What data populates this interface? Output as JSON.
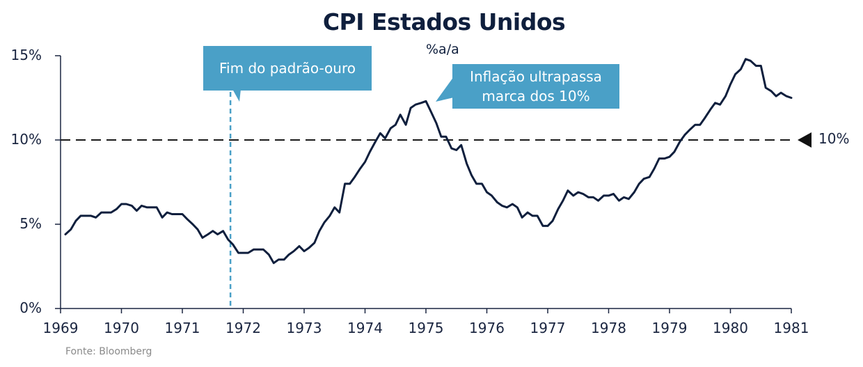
{
  "title": "CPI Estados Unidos",
  "subtitle": "%a/a",
  "source": "Fonte: Bloomberg",
  "colors": {
    "line": "#0f1f3d",
    "accent": "#4aa0c7",
    "reference": "#1a1a1a"
  },
  "callouts": {
    "gold_standard": "Fim do padrão-ouro",
    "inflation": [
      "Inflação ultrapassa",
      "marca dos 10%"
    ]
  },
  "reference_label": "10%",
  "chart_data": {
    "type": "line",
    "title": "CPI Estados Unidos",
    "subtitle": "%a/a",
    "xlim": [
      1969,
      1981
    ],
    "ylim": [
      0,
      15
    ],
    "grid": false,
    "yticks": [
      0,
      5,
      10,
      15
    ],
    "ytick_labels": [
      "0%",
      "5%",
      "10%",
      "15%"
    ],
    "xticks": [
      1969,
      1970,
      1971,
      1972,
      1973,
      1974,
      1975,
      1976,
      1977,
      1978,
      1979,
      1980,
      1981
    ],
    "xtick_labels": [
      "1969",
      "1970",
      "1971",
      "1972",
      "1973",
      "1974",
      "1975",
      "1976",
      "1977",
      "1978",
      "1979",
      "1980",
      "1981"
    ],
    "reference_line": {
      "y": 10,
      "label": "10%"
    },
    "event_marker": {
      "x": 1971.79,
      "label": "Fim do padrão-ouro"
    },
    "annotation": {
      "x": 1975.0,
      "y": 12.3,
      "label": "Inflação ultrapassa marca dos 10%"
    },
    "series": [
      {
        "x": [
          1969.08,
          1969.17,
          1969.25,
          1969.33,
          1969.42,
          1969.5,
          1969.58,
          1969.67,
          1969.75,
          1969.83,
          1969.92,
          1970.0,
          1970.08,
          1970.17,
          1970.25,
          1970.33,
          1970.42,
          1970.5,
          1970.58,
          1970.67,
          1970.75,
          1970.83,
          1970.92,
          1971.0,
          1971.08,
          1971.17,
          1971.25,
          1971.33,
          1971.42,
          1971.5,
          1971.58,
          1971.67,
          1971.75,
          1971.83,
          1971.92,
          1972.0,
          1972.08,
          1972.17,
          1972.25,
          1972.33,
          1972.42,
          1972.5,
          1972.58,
          1972.67,
          1972.75,
          1972.83,
          1972.92,
          1973.0,
          1973.08,
          1973.17,
          1973.25,
          1973.33,
          1973.42,
          1973.5,
          1973.58,
          1973.67,
          1973.75,
          1973.83,
          1973.92,
          1974.0,
          1974.08,
          1974.17,
          1974.25,
          1974.33,
          1974.42,
          1974.5,
          1974.58,
          1974.67,
          1974.75,
          1974.83,
          1974.92,
          1975.0,
          1975.08,
          1975.17,
          1975.25,
          1975.33,
          1975.42,
          1975.5,
          1975.58,
          1975.67,
          1975.75,
          1975.83,
          1975.92,
          1976.0,
          1976.08,
          1976.17,
          1976.25,
          1976.33,
          1976.42,
          1976.5,
          1976.58,
          1976.67,
          1976.75,
          1976.83,
          1976.92,
          1977.0,
          1977.08,
          1977.17,
          1977.25,
          1977.33,
          1977.42,
          1977.5,
          1977.58,
          1977.67,
          1977.75,
          1977.83,
          1977.92,
          1978.0,
          1978.08,
          1978.17,
          1978.25,
          1978.33,
          1978.42,
          1978.5,
          1978.58,
          1978.67,
          1978.75,
          1978.83,
          1978.92,
          1979.0,
          1979.08,
          1979.17,
          1979.25,
          1979.33,
          1979.42,
          1979.5,
          1979.58,
          1979.67,
          1979.75,
          1979.83,
          1979.92,
          1980.0,
          1980.08,
          1980.17,
          1980.25,
          1980.33,
          1980.42,
          1980.5,
          1980.58,
          1980.67,
          1980.75,
          1980.83,
          1980.92,
          1981.0
        ],
        "values": [
          4.4,
          4.7,
          5.2,
          5.5,
          5.5,
          5.5,
          5.4,
          5.7,
          5.7,
          5.7,
          5.9,
          6.2,
          6.2,
          6.1,
          5.8,
          6.1,
          6.0,
          6.0,
          6.0,
          5.4,
          5.7,
          5.6,
          5.6,
          5.6,
          5.3,
          5.0,
          4.7,
          4.2,
          4.4,
          4.6,
          4.4,
          4.6,
          4.1,
          3.8,
          3.3,
          3.3,
          3.3,
          3.5,
          3.5,
          3.5,
          3.2,
          2.7,
          2.9,
          2.9,
          3.2,
          3.4,
          3.7,
          3.4,
          3.6,
          3.9,
          4.6,
          5.1,
          5.5,
          6.0,
          5.7,
          7.4,
          7.4,
          7.8,
          8.3,
          8.7,
          9.3,
          9.9,
          10.4,
          10.1,
          10.7,
          10.9,
          11.5,
          10.9,
          11.9,
          12.1,
          12.2,
          12.3,
          11.7,
          11.0,
          10.2,
          10.2,
          9.5,
          9.4,
          9.7,
          8.6,
          7.9,
          7.4,
          7.4,
          6.9,
          6.7,
          6.3,
          6.1,
          6.0,
          6.2,
          6.0,
          5.4,
          5.7,
          5.5,
          5.5,
          4.9,
          4.9,
          5.2,
          5.9,
          6.4,
          7.0,
          6.7,
          6.9,
          6.8,
          6.6,
          6.6,
          6.4,
          6.7,
          6.7,
          6.8,
          6.4,
          6.6,
          6.5,
          6.9,
          7.4,
          7.7,
          7.8,
          8.3,
          8.9,
          8.9,
          9.0,
          9.3,
          9.9,
          10.3,
          10.6,
          10.9,
          10.9,
          11.3,
          11.8,
          12.2,
          12.1,
          12.6,
          13.3,
          13.9,
          14.2,
          14.8,
          14.7,
          14.4,
          14.4,
          13.1,
          12.9,
          12.6,
          12.8,
          12.6,
          12.5
        ]
      }
    ]
  }
}
